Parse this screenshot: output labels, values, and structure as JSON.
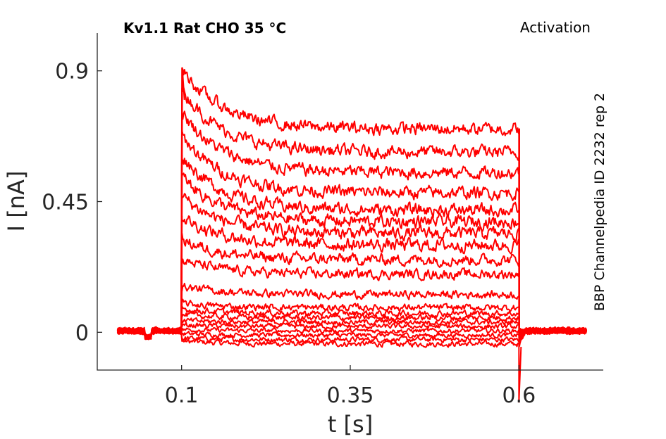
{
  "chart_data": {
    "type": "line",
    "title": "Kv1.1  Rat  CHO  35 °C",
    "subtitle": "Activation",
    "side_label": "BBP Channelpedia ID 2232 rep 2",
    "xlabel": "t [s]",
    "ylabel": "I [nA]",
    "xlim": [
      -0.025,
      0.725
    ],
    "ylim": [
      -0.13,
      1.03
    ],
    "xticks": [
      0.1,
      0.35,
      0.6
    ],
    "xtick_labels": [
      "0.1",
      "0.35",
      "0.6"
    ],
    "yticks": [
      0,
      0.45,
      0.9
    ],
    "ytick_labels": [
      "0",
      "0.45",
      "0.9"
    ],
    "grid": false,
    "line_color": "#ff0000",
    "pulse_start": 0.1,
    "pulse_end": 0.6,
    "trace_start": 0.005,
    "trace_end": 0.7,
    "series": [
      {
        "steady": -0.04,
        "peak": -0.03
      },
      {
        "steady": -0.025,
        "peak": -0.02
      },
      {
        "steady": -0.01,
        "peak": -0.005
      },
      {
        "steady": 0.005,
        "peak": 0.01
      },
      {
        "steady": 0.02,
        "peak": 0.025
      },
      {
        "steady": 0.035,
        "peak": 0.04
      },
      {
        "steady": 0.05,
        "peak": 0.06
      },
      {
        "steady": 0.065,
        "peak": 0.08
      },
      {
        "steady": 0.085,
        "peak": 0.1
      },
      {
        "steady": 0.13,
        "peak": 0.16
      },
      {
        "steady": 0.2,
        "peak": 0.25
      },
      {
        "steady": 0.25,
        "peak": 0.32
      },
      {
        "steady": 0.3,
        "peak": 0.4
      },
      {
        "steady": 0.34,
        "peak": 0.47
      },
      {
        "steady": 0.38,
        "peak": 0.54
      },
      {
        "steady": 0.42,
        "peak": 0.61
      },
      {
        "steady": 0.48,
        "peak": 0.68
      },
      {
        "steady": 0.55,
        "peak": 0.76
      },
      {
        "steady": 0.62,
        "peak": 0.84
      },
      {
        "steady": 0.7,
        "peak": 0.91
      }
    ]
  }
}
